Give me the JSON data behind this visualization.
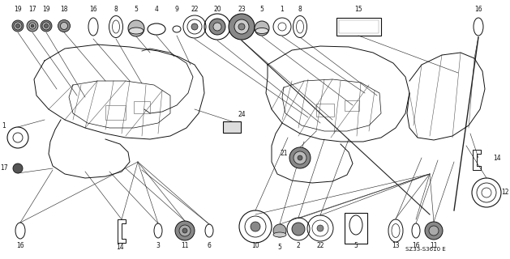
{
  "bg_color": "#ffffff",
  "part_number_label": "SZ33-S3610 E",
  "fig_width": 6.29,
  "fig_height": 3.2,
  "dpi": 100,
  "line_color": "#333333",
  "dark": "#111111"
}
